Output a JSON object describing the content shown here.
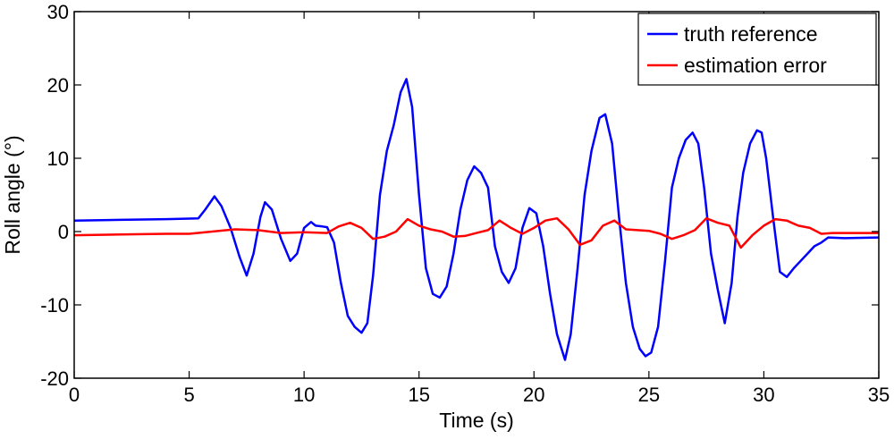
{
  "chart_data": {
    "type": "line",
    "title": "",
    "xlabel": "Time (s)",
    "ylabel": "Roll angle (°)",
    "xlim": [
      0,
      35
    ],
    "ylim": [
      -20,
      30
    ],
    "xticks": [
      0,
      5,
      10,
      15,
      20,
      25,
      30,
      35
    ],
    "yticks": [
      -20,
      -10,
      0,
      10,
      20,
      30
    ],
    "grid": false,
    "legend_position": "top-right",
    "series": [
      {
        "name": "truth reference",
        "color": "#0000ff",
        "x": [
          0,
          2,
          4,
          5.4,
          5.7,
          6.1,
          6.4,
          6.8,
          7.2,
          7.5,
          7.8,
          8.1,
          8.3,
          8.6,
          9.0,
          9.4,
          9.7,
          10.0,
          10.3,
          10.5,
          10.8,
          11.0,
          11.3,
          11.6,
          11.9,
          12.2,
          12.5,
          12.75,
          13.0,
          13.3,
          13.6,
          13.9,
          14.2,
          14.45,
          14.7,
          15.0,
          15.3,
          15.6,
          15.9,
          16.2,
          16.5,
          16.8,
          17.1,
          17.4,
          17.7,
          18.0,
          18.3,
          18.6,
          18.9,
          19.2,
          19.5,
          19.8,
          20.1,
          20.4,
          20.7,
          21.0,
          21.35,
          21.6,
          21.9,
          22.2,
          22.5,
          22.85,
          23.1,
          23.4,
          23.7,
          24.0,
          24.3,
          24.6,
          24.85,
          25.1,
          25.4,
          25.7,
          26.0,
          26.3,
          26.6,
          26.9,
          27.15,
          27.4,
          27.7,
          28.0,
          28.3,
          28.6,
          28.85,
          29.1,
          29.4,
          29.7,
          29.9,
          30.1,
          30.4,
          30.7,
          31.0,
          31.3,
          31.6,
          31.9,
          32.2,
          32.5,
          32.8,
          33.5,
          35
        ],
        "y": [
          1.5,
          1.6,
          1.7,
          1.8,
          3.0,
          4.8,
          3.5,
          0.5,
          -3.5,
          -6.0,
          -3.0,
          2.0,
          4.0,
          3.0,
          -1.0,
          -4.0,
          -3.0,
          0.5,
          1.3,
          0.8,
          0.7,
          0.6,
          -1.5,
          -7.0,
          -11.5,
          -13.0,
          -13.8,
          -12.5,
          -6.0,
          5.0,
          11.0,
          14.5,
          19.0,
          20.8,
          17.0,
          5.0,
          -5.0,
          -8.5,
          -9.0,
          -7.5,
          -3.0,
          3.0,
          7.0,
          8.9,
          8.0,
          6.0,
          -2.0,
          -5.5,
          -7.0,
          -5.0,
          0.5,
          3.2,
          2.5,
          -2.0,
          -8.5,
          -14.0,
          -17.5,
          -14.0,
          -5.0,
          5.0,
          11.0,
          15.5,
          16.0,
          12.0,
          2.0,
          -7.0,
          -13.0,
          -16.0,
          -17.0,
          -16.5,
          -13.0,
          -4.0,
          6.0,
          10.0,
          12.5,
          13.5,
          12.0,
          6.0,
          -3.0,
          -8.0,
          -12.5,
          -7.0,
          2.0,
          8.0,
          12.0,
          13.8,
          13.5,
          10.0,
          2.0,
          -5.5,
          -6.2,
          -5.0,
          -4.0,
          -3.0,
          -2.0,
          -1.5,
          -0.8,
          -0.9,
          -0.8
        ]
      },
      {
        "name": "estimation error",
        "color": "#ff0000",
        "x": [
          0,
          2,
          4,
          5,
          6,
          7,
          8,
          9,
          10,
          11,
          11.5,
          12,
          12.5,
          13,
          13.5,
          14,
          14.5,
          15,
          15.5,
          16,
          16.5,
          17,
          17.5,
          18,
          18.5,
          19,
          19.5,
          20,
          20.5,
          21,
          21.5,
          22,
          22.5,
          23,
          23.5,
          24,
          24.5,
          25,
          25.5,
          26,
          26.5,
          27,
          27.5,
          28,
          28.5,
          29,
          29.5,
          30,
          30.5,
          31,
          31.5,
          32,
          32.5,
          33,
          35
        ],
        "y": [
          -0.5,
          -0.4,
          -0.3,
          -0.3,
          0,
          0.3,
          0.2,
          -0.2,
          -0.1,
          -0.2,
          0.7,
          1.2,
          0.5,
          -1.0,
          -0.7,
          0,
          1.7,
          0.8,
          0.3,
          0,
          -0.7,
          -0.6,
          -0.2,
          0.2,
          1.5,
          0.5,
          -0.3,
          0.5,
          1.5,
          1.8,
          0.3,
          -1.8,
          -1.2,
          0.8,
          1.5,
          0.3,
          0.2,
          0.1,
          -0.3,
          -1.0,
          -0.5,
          0.2,
          1.8,
          1.2,
          0.8,
          -2.2,
          -0.5,
          0.8,
          1.7,
          1.5,
          0.8,
          0.5,
          -0.3,
          -0.2,
          -0.2
        ]
      }
    ]
  }
}
